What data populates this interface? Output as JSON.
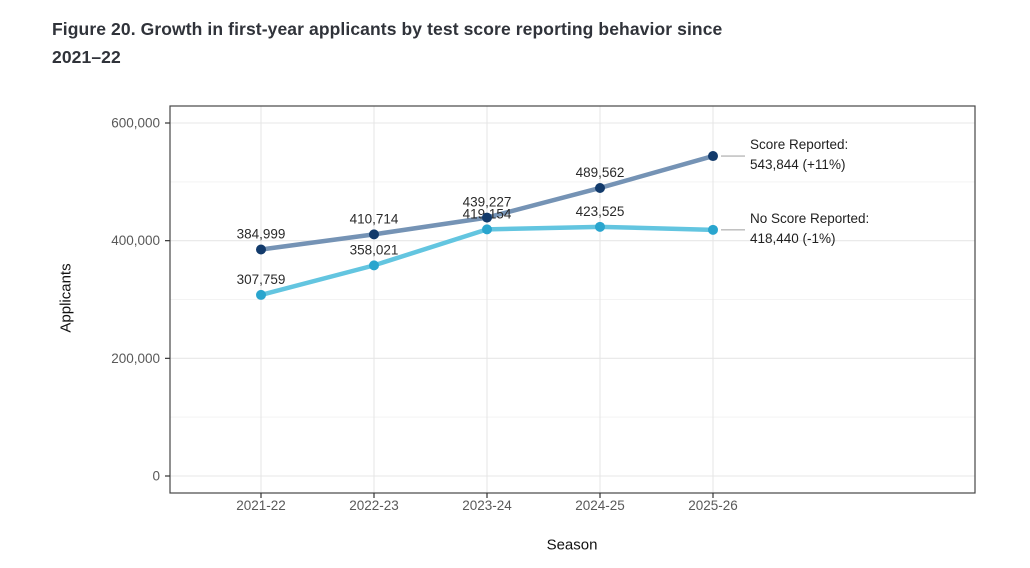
{
  "title": {
    "line1": "Figure 20. Growth in first-year applicants by test score reporting behavior since",
    "line2": "2021–22"
  },
  "chart_data": {
    "type": "line",
    "title": "Figure 20. Growth in first-year applicants by test score reporting behavior since 2021–22",
    "xlabel": "Season",
    "ylabel": "Applicants",
    "categories": [
      "2021-22",
      "2022-23",
      "2023-24",
      "2024-25",
      "2025-26"
    ],
    "ylim": [
      0,
      600000
    ],
    "yticks": [
      0,
      200000,
      400000,
      600000
    ],
    "ytick_labels": [
      "0",
      "200,000",
      "400,000",
      "600,000"
    ],
    "yticks_minor": [
      100000,
      300000,
      500000
    ],
    "grid": true,
    "legend_position": "right-annotations",
    "series": [
      {
        "name": "Score Reported",
        "values": [
          384999,
          410714,
          439227,
          489562,
          543844
        ],
        "point_labels": [
          "384,999",
          "410,714",
          "439,227",
          "489,562",
          null
        ],
        "line_color": "#7593B5",
        "point_color": "#123A6B"
      },
      {
        "name": "No Score Reported",
        "values": [
          307759,
          358021,
          419154,
          423525,
          418440
        ],
        "point_labels": [
          "307,759",
          "358,021",
          "419,154",
          "423,525",
          null
        ],
        "line_color": "#63C5E0",
        "point_color": "#29A5CE"
      }
    ],
    "annotations": [
      {
        "series": "Score Reported",
        "line1": "Score Reported:",
        "line2": "543,844 (+11%)"
      },
      {
        "series": "No Score Reported",
        "line1": "No Score Reported:",
        "line2": "418,440 (-1%)"
      }
    ]
  },
  "colors": {
    "title_text": "#30333a",
    "axis_tick_text": "#595959",
    "axis_title_text": "#111111",
    "data_label_text": "#2a2a2a",
    "grid_major": "#e7e7e7",
    "grid_minor": "#f3f3f3",
    "panel_border": "#474747",
    "tick_mark": "#333333",
    "leader_line": "#b9b9b9",
    "background": "#ffffff"
  }
}
